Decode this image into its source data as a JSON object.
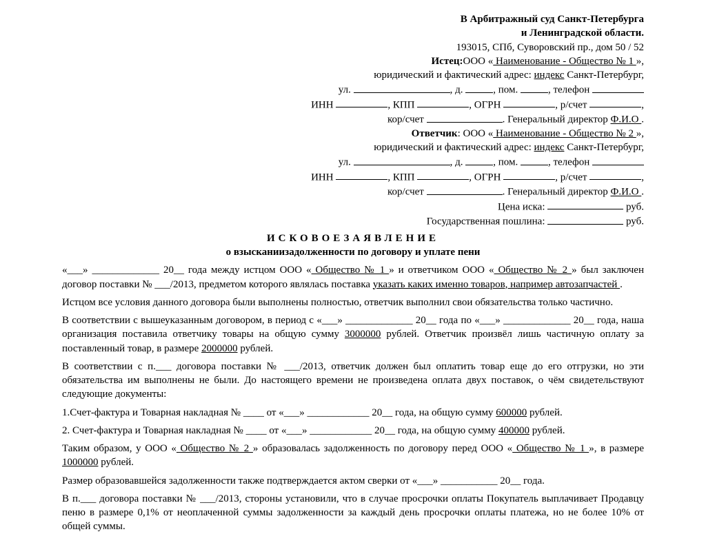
{
  "header": {
    "court1": "В Арбитражный суд Санкт-Петербурга",
    "court2": "и Ленинградской области.",
    "address": "193015, СПб, Суворовский пр., дом 50 / 52",
    "plaintiff_label": "Истец:",
    "plaintiff_name": "   Наименование - Общество № 1    ",
    "addr_label": "юридический и фактический адрес: ",
    "addr_index": "индекс",
    "addr_city": " Санкт-Петербург,",
    "line_ul": "ул. ",
    "line_d": ", д. ",
    "line_pom": ", пом. ",
    "line_tel": ", телефон ",
    "inn": "ИНН ",
    "kpp": ", КПП ",
    "ogrn": ", ОГРН ",
    "rs": ", р/счет ",
    "ks": "кор/счет ",
    "gendir": ". Генеральный директор ",
    "fio": "  Ф.И.О  ",
    "defendant_label": "Ответчик",
    "defendant_name": "   Наименование - Общество № 2   ",
    "price": "Цена иска: ",
    "rub": " руб.",
    "duty": "Государственная пошлина: "
  },
  "title": {
    "main": "ИСКОВОЕЗАЯВЛЕНИЕ",
    "sub": "о взысканиизадолженности по договору и уплате пени"
  },
  "body": {
    "p1a": "«___» _____________ 20__ года между истцом ООО «",
    "p1b": " Общество № 1 ",
    "p1c": "» и ответчиком ООО «",
    "p1d": " Общество № 2 ",
    "p1e": "» был заключен договор поставки № ___/2013, предметом которого являлась поставка ",
    "p1f": " указать каких именно товаров, например автозапчастей ",
    "p1g": ".",
    "p2": "Истцом все условия данного договора были выполнены полностью, ответчик выполнил свои обязательства только частично.",
    "p3a": "В соответствии с вышеуказанным договором, в период с «___» _____________ 20__ года по «___» _____________ 20__ года, наша организация поставила ответчику товары на общую сумму ",
    "p3b": "3000000",
    "p3c": " рублей. Ответчик произвёл лишь частичную оплату за поставленный товар, в размере ",
    "p3d": "2000000",
    "p3e": " рублей.",
    "p4": "В соответствии с п.___ договора поставки № ___/2013, ответчик должен был оплатить товар еще до его отгрузки, но эти обязательства им выполнены не были. До настоящего времени не произведена оплата двух поставок, о чём свидетельствуют следующие документы:",
    "p5a": "1.Счет-фактура и Товарная накладная № ____ от «___» ____________ 20__ года, на общую сумму ",
    "p5b": "600000",
    "p5c": " рублей.",
    "p6a": "2. Счет-фактура и Товарная накладная № ____ от «___» ____________ 20__ года, на общую сумму ",
    "p6b": "400000",
    "p6c": " рублей.",
    "p7a": "Таким образом, у ООО «",
    "p7b": " Общество № 2 ",
    "p7c": "» образовалась задолженность по договору перед ООО «",
    "p7d": " Общество № 1 ",
    "p7e": "», в размере ",
    "p7f": "1000000",
    "p7g": " рублей.",
    "p8": "Размер образовавшейся задолженности также подтверждается актом сверки от «___» ___________ 20__ года.",
    "p9": "В п.___ договора поставки № ___/2013, стороны установили, что в случае просрочки оплаты Покупатель выплачивает Продавцу пеню в размере 0,1% от неоплаченной суммы задолженности за каждый день просрочки оплаты платежа, но не более 10% от общей суммы."
  }
}
